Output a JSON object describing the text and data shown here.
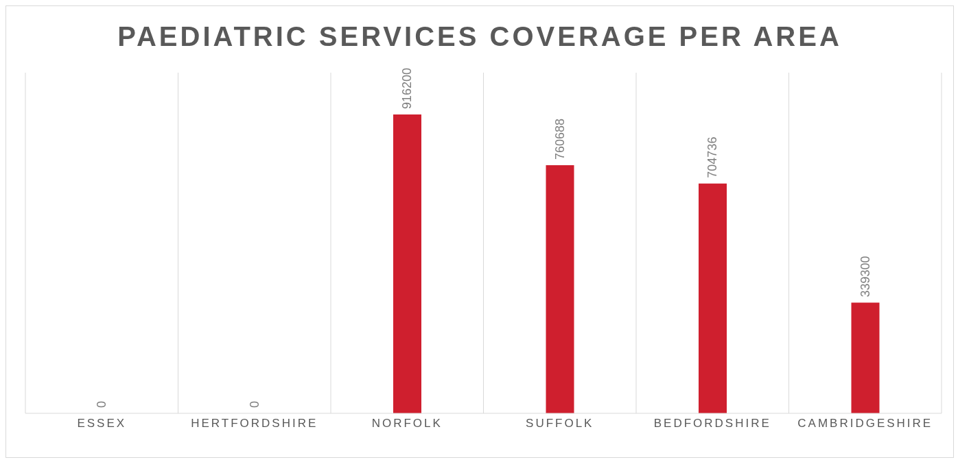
{
  "chart_data": {
    "type": "bar",
    "title": "PAEDIATRIC SERVICES COVERAGE PER AREA",
    "categories": [
      "ESSEX",
      "HERTFORDSHIRE",
      "NORFOLK",
      "SUFFOLK",
      "BEDFORDSHIRE",
      "CAMBRIDGESHIRE"
    ],
    "values": [
      0,
      0,
      916200,
      760688,
      704736,
      339300
    ],
    "color": "#cf1f2e",
    "data_labels": true,
    "grid": "x",
    "tick_labels": "x"
  }
}
